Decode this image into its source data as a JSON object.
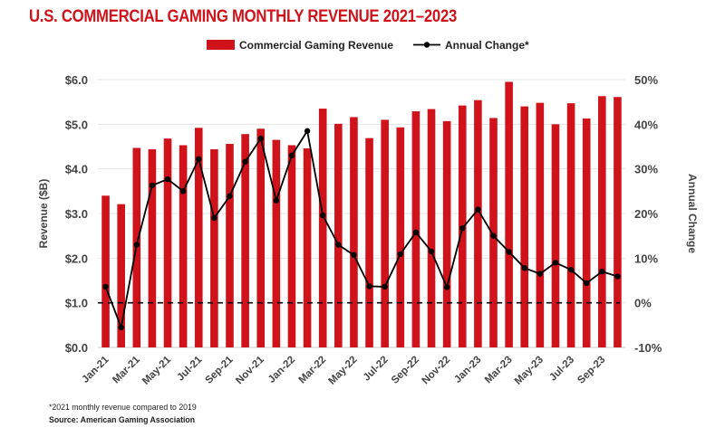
{
  "chart_data": {
    "type": "bar",
    "title": "U.S. COMMERCIAL GAMING MONTHLY REVENUE 2021–2023",
    "ylabel": "Revenue ($B)",
    "y2label": "Annual Change",
    "ylim": [
      0,
      6
    ],
    "y2lim": [
      -10,
      50
    ],
    "yticks": [
      "$0.0",
      "$1.0",
      "$2.0",
      "$3.0",
      "$4.0",
      "$5.0",
      "$6.0"
    ],
    "y2ticks": [
      "-10%",
      "0%",
      "10%",
      "20%",
      "30%",
      "40%",
      "50%"
    ],
    "legend_placement": "top-center",
    "grid": true,
    "categories": [
      "Jan-21",
      "Feb-21",
      "Mar-21",
      "Apr-21",
      "May-21",
      "Jun-21",
      "Jul-21",
      "Aug-21",
      "Sep-21",
      "Oct-21",
      "Nov-21",
      "Dec-21",
      "Jan-22",
      "Feb-22",
      "Mar-22",
      "Apr-22",
      "May-22",
      "Jun-22",
      "Jul-22",
      "Aug-22",
      "Sep-22",
      "Oct-22",
      "Nov-22",
      "Dec-22",
      "Jan-23",
      "Feb-23",
      "Mar-23",
      "Apr-23",
      "May-23",
      "Jun-23",
      "Jul-23",
      "Aug-23",
      "Sep-23",
      "Oct-23"
    ],
    "xtick_labels": [
      "Jan-21",
      "Mar-21",
      "May-21",
      "Jul-21",
      "Sep-21",
      "Nov-21",
      "Jan-22",
      "Mar-22",
      "May-22",
      "Jul-22",
      "Sep-22",
      "Nov-22",
      "Jan-23",
      "Mar-23",
      "May-23",
      "Jul-23",
      "Sep-23"
    ],
    "series": [
      {
        "name": "Commercial Gaming Revenue",
        "type": "bar",
        "axis": "left",
        "color": "#d0121b",
        "values": [
          3.4,
          3.21,
          4.47,
          4.44,
          4.68,
          4.53,
          4.92,
          4.44,
          4.56,
          4.78,
          4.9,
          4.65,
          4.53,
          4.46,
          5.35,
          5.01,
          5.16,
          4.69,
          5.1,
          4.93,
          5.29,
          5.34,
          5.07,
          5.42,
          5.54,
          5.14,
          5.95,
          5.4,
          5.48,
          5.0,
          5.47,
          5.13,
          5.63,
          5.61
        ]
      },
      {
        "name": "Annual Change*",
        "type": "line",
        "axis": "right",
        "color": "#000000",
        "values": [
          3.6,
          -5.5,
          13.0,
          26.3,
          27.7,
          25.0,
          32.2,
          19.0,
          23.9,
          31.6,
          36.8,
          22.9,
          33.0,
          38.5,
          19.6,
          13.0,
          10.7,
          3.7,
          3.6,
          10.9,
          15.8,
          11.5,
          3.5,
          16.7,
          20.9,
          15.0,
          11.4,
          7.8,
          6.5,
          9.0,
          7.4,
          4.4,
          7.0,
          5.9
        ]
      }
    ],
    "reference_line": {
      "axis": "right",
      "value": 0,
      "style": "dashed"
    }
  },
  "footnote": "*2021 monthly revenue compared to 2019",
  "source": "Source: American Gaming Association"
}
